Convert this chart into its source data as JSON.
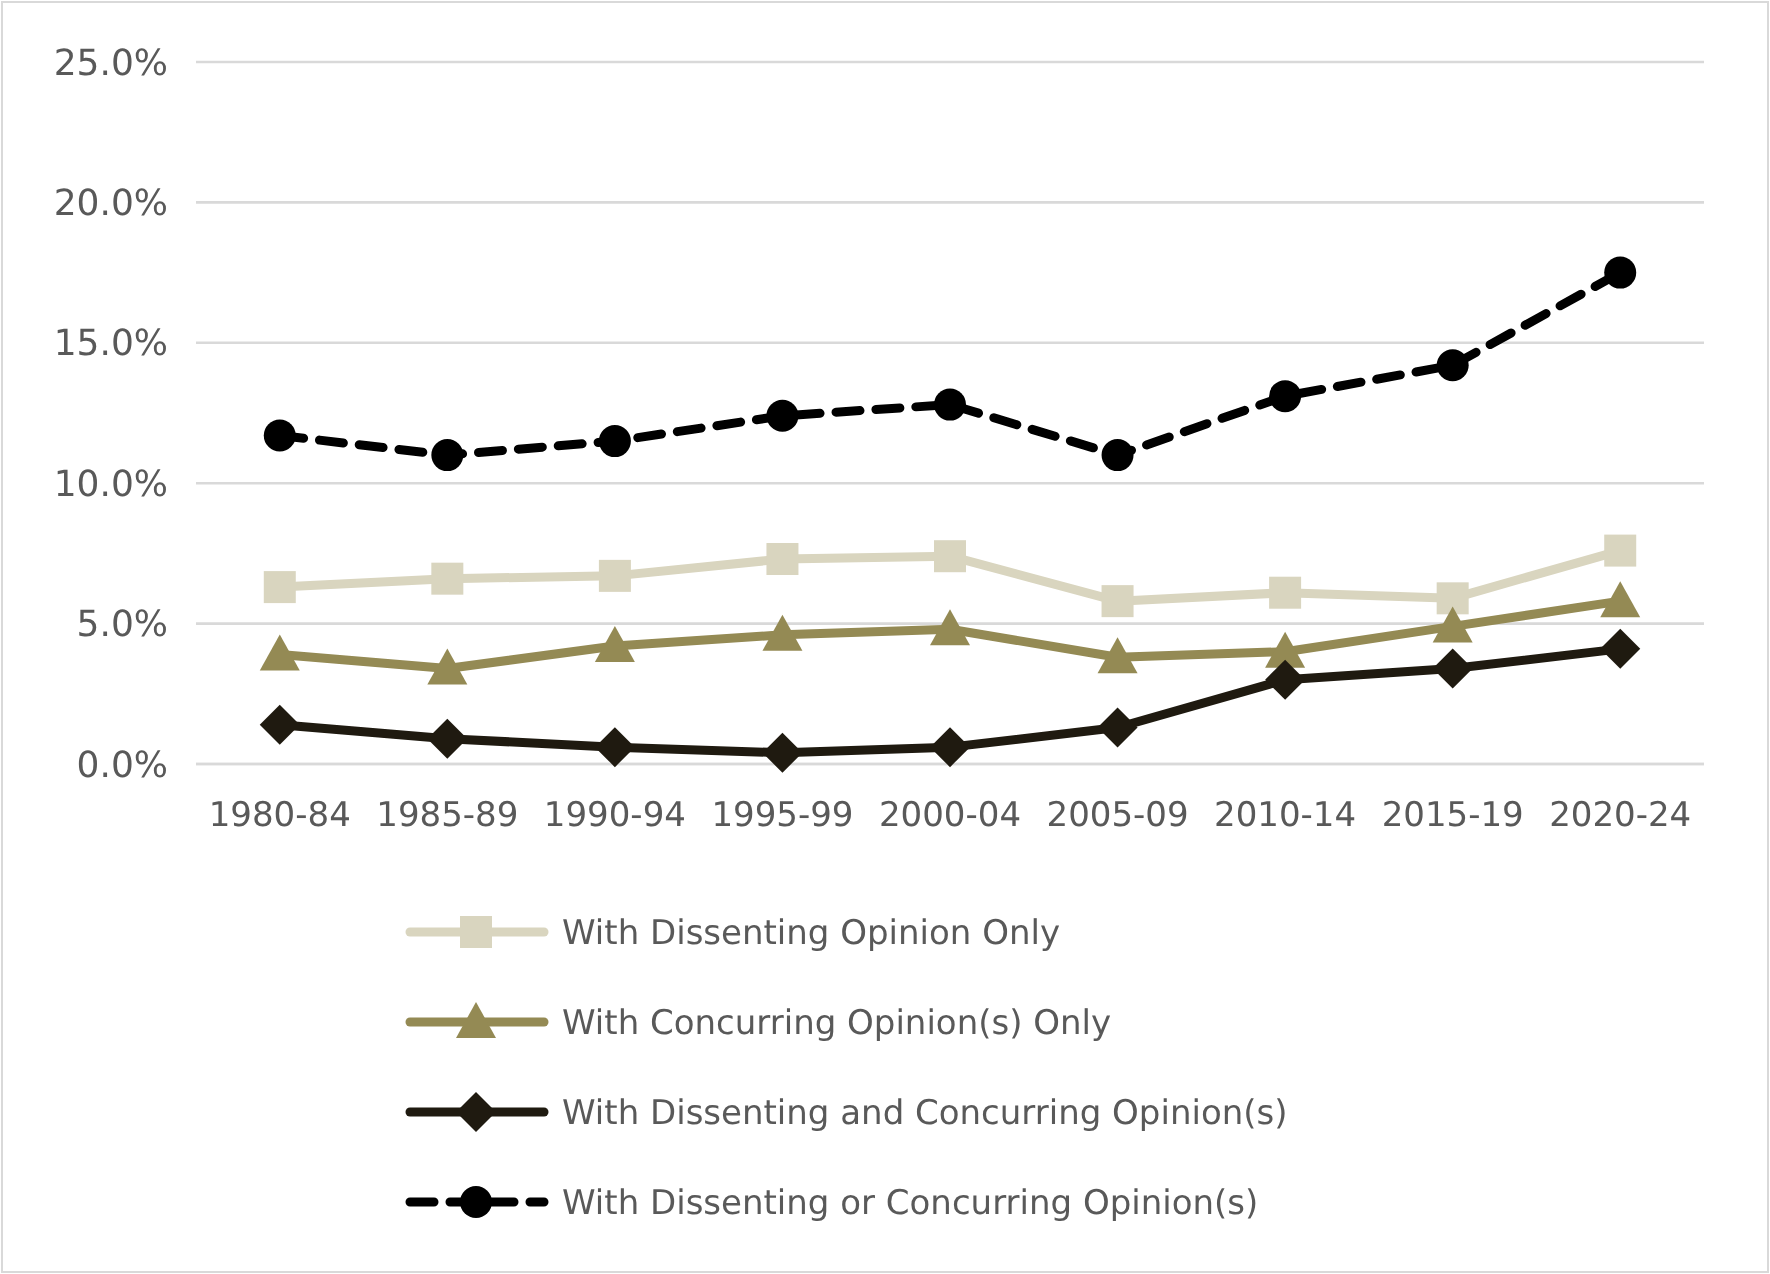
{
  "chart_data": {
    "type": "line",
    "categories": [
      "1980-84",
      "1985-89",
      "1990-94",
      "1995-99",
      "2000-04",
      "2005-09",
      "2010-14",
      "2015-19",
      "2020-24"
    ],
    "series": [
      {
        "name": "With Dissenting Opinion Only",
        "color": "#d9d5bf",
        "marker": "square",
        "line_style": "solid",
        "values": [
          6.3,
          6.6,
          6.7,
          7.3,
          7.4,
          5.8,
          6.1,
          5.9,
          7.6
        ]
      },
      {
        "name": "With Concurring Opinion(s) Only",
        "color": "#948a54",
        "marker": "triangle",
        "line_style": "solid",
        "values": [
          3.9,
          3.4,
          4.2,
          4.6,
          4.8,
          3.8,
          4.0,
          4.9,
          5.8
        ]
      },
      {
        "name": "With Dissenting and Concurring Opinion(s)",
        "color": "#1f1a10",
        "marker": "diamond",
        "line_style": "solid",
        "values": [
          1.4,
          0.9,
          0.6,
          0.4,
          0.6,
          1.3,
          3.0,
          3.4,
          4.1
        ]
      },
      {
        "name": "With Dissenting or Concurring Opinion(s)",
        "color": "#000000",
        "marker": "circle",
        "line_style": "dashed",
        "values": [
          11.7,
          11.0,
          11.5,
          12.4,
          12.8,
          11.0,
          13.1,
          14.2,
          17.5
        ]
      }
    ],
    "ylim": [
      0,
      25
    ],
    "yticks": [
      {
        "value": 0,
        "label": "0.0%"
      },
      {
        "value": 5,
        "label": "5.0%"
      },
      {
        "value": 10,
        "label": "10.0%"
      },
      {
        "value": 15,
        "label": "15.0%"
      },
      {
        "value": 20,
        "label": "20.0%"
      },
      {
        "value": 25,
        "label": "25.0%"
      }
    ],
    "grid": "y",
    "legend": "bottom"
  }
}
